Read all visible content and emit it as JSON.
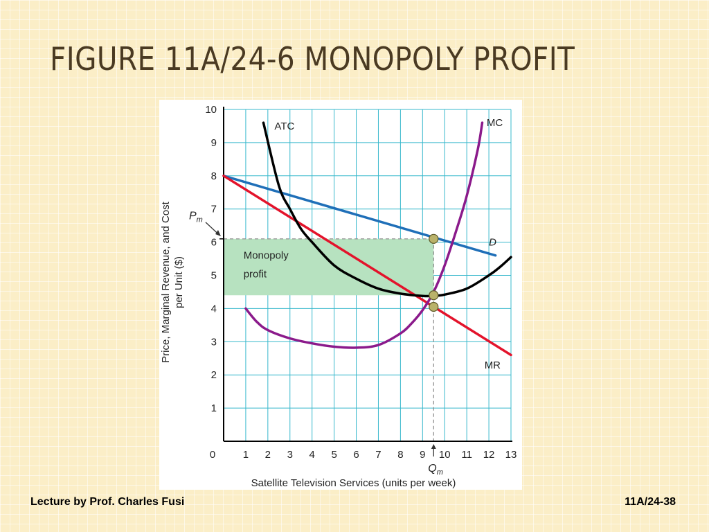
{
  "slide": {
    "title": "FIGURE 11A/24-6  MONOPOLY PROFIT",
    "footer_left": "Lecture by Prof. Charles Fusi",
    "footer_right": "11A/24-38"
  },
  "colors": {
    "background": "#fbeec7",
    "title": "#4a3a22",
    "grid": "#37b8cc",
    "demand": "#1f6fb8",
    "mr": "#e3132b",
    "atc": "#000000",
    "mc": "#8b1a8b",
    "profit_area": "#b7e2c0",
    "points": "#b9b26a"
  },
  "chart_data": {
    "type": "line",
    "xlabel": "Satellite Television Services (units per week)",
    "ylabel": "Price, Marginal Revenue, and Cost per Unit ($)",
    "xlim": [
      0,
      13
    ],
    "ylim": [
      0,
      10
    ],
    "xticks": [
      0,
      1,
      2,
      3,
      4,
      5,
      6,
      7,
      8,
      9,
      10,
      11,
      12,
      13
    ],
    "yticks": [
      1,
      2,
      3,
      4,
      5,
      6,
      7,
      8,
      9,
      10
    ],
    "grid": true,
    "series": [
      {
        "name": "D",
        "x": [
          0,
          12.3
        ],
        "y": [
          8,
          5.6
        ]
      },
      {
        "name": "MR",
        "x": [
          0,
          13
        ],
        "y": [
          8,
          2.6
        ]
      },
      {
        "name": "ATC",
        "x": [
          1.8,
          2.5,
          3,
          3.5,
          4,
          5,
          6,
          7,
          8,
          9,
          9.5,
          10,
          11,
          12,
          12.5,
          13
        ],
        "y": [
          9.6,
          7.7,
          7.0,
          6.4,
          6.0,
          5.3,
          4.9,
          4.6,
          4.45,
          4.38,
          4.38,
          4.42,
          4.6,
          5.0,
          5.25,
          5.55
        ]
      },
      {
        "name": "MC",
        "x": [
          1,
          1.5,
          2,
          3,
          4,
          5,
          6,
          7,
          8,
          8.5,
          9,
          9.5,
          10,
          10.5,
          11,
          11.5,
          11.7
        ],
        "y": [
          4.0,
          3.6,
          3.35,
          3.1,
          2.95,
          2.85,
          2.82,
          2.9,
          3.25,
          3.55,
          3.95,
          4.5,
          5.3,
          6.3,
          7.4,
          8.8,
          9.6
        ]
      }
    ],
    "profit_area": {
      "x": [
        0,
        9.5
      ],
      "y": [
        4.4,
        6.1
      ],
      "label_lines": [
        "Monopoly",
        "profit"
      ]
    },
    "points": [
      {
        "x": 9.5,
        "y": 6.1
      },
      {
        "x": 9.5,
        "y": 4.4
      },
      {
        "x": 9.5,
        "y": 4.05
      }
    ],
    "annotations": {
      "pm_label": "P",
      "pm_sub": "m",
      "pm_value": 6.1,
      "qm_label": "Q",
      "qm_sub": "m",
      "qm_value": 9.5
    }
  }
}
